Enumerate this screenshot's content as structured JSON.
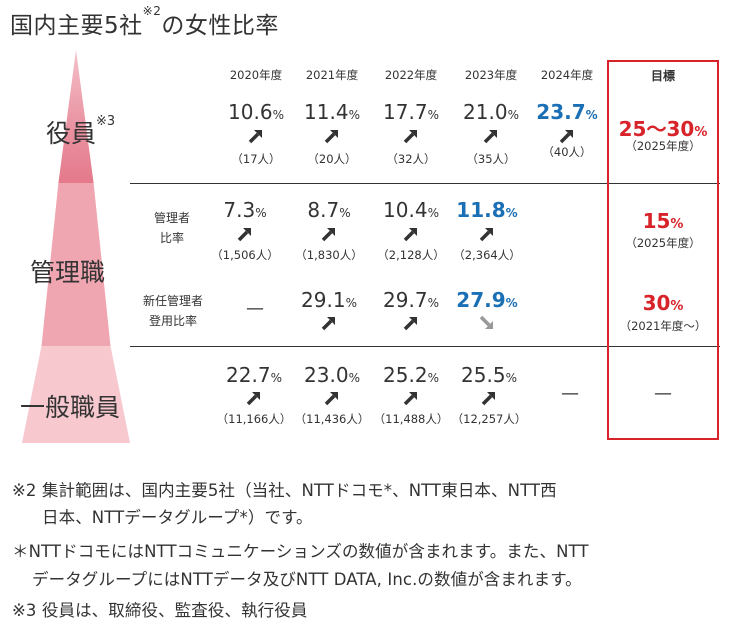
{
  "title": {
    "main": "国内主要5社",
    "sup": "※2",
    "suffix": "の女性比率"
  },
  "years": [
    "2020年度",
    "2021年度",
    "2022年度",
    "2023年度",
    "2024年度"
  ],
  "goal_header": "目標",
  "rows": {
    "officers": {
      "label": "役員",
      "label_sup": "※3",
      "values": [
        "10.6",
        "11.4",
        "17.7",
        "21.0",
        "23.7"
      ],
      "counts": [
        "（17人）",
        "（20人）",
        "（32人）",
        "（35人）",
        "（40人）"
      ],
      "goal": {
        "value": "25〜30",
        "unit": "%",
        "note": "（2025年度）"
      }
    },
    "managers": {
      "label": "管理職",
      "ratio": {
        "label_line1": "管理者",
        "label_line2": "比率",
        "values": [
          "7.3",
          "8.7",
          "10.4",
          "11.8"
        ],
        "counts": [
          "（1,506人）",
          "（1,830人）",
          "（2,128人）",
          "（2,364人）"
        ],
        "goal": {
          "value": "15",
          "unit": "%",
          "note": "（2025年度）"
        }
      },
      "new_appointment": {
        "label_line1": "新任管理者",
        "label_line2": "登用比率",
        "dash": "—",
        "values": [
          "29.1",
          "29.7",
          "27.9"
        ],
        "goal": {
          "value": "30",
          "unit": "%",
          "note": "（2021年度〜）"
        }
      }
    },
    "general": {
      "label": "一般職員",
      "values": [
        "22.7",
        "23.0",
        "25.2",
        "25.5"
      ],
      "counts": [
        "（11,166人）",
        "（11,436人）",
        "（11,488人）",
        "（12,257人）"
      ],
      "dash_2024": "—",
      "goal_dash": "—"
    }
  },
  "pct_unit": "%",
  "notes": [
    "※2 集計範囲は、国内主要5社（当社、NTTドコモ*、NTT東日本、NTT西",
    "日本、NTTデータグループ*）です。",
    "＊NTTドコモにはNTTコミュニケーションズの数値が含まれます。また、NTT",
    "データグループにはNTTデータ及びNTT DATA, Inc.の数値が含まれます。",
    "※3 役員は、取締役、監査役、執行役員"
  ],
  "colors": {
    "accent_red": "#d8232a",
    "blue": "#1b6fb4",
    "pink_dark": "#e4798b",
    "pink_mid": "#f0a6b0",
    "pink_light": "#f7c9cf",
    "arrow_gray": "#999999"
  }
}
